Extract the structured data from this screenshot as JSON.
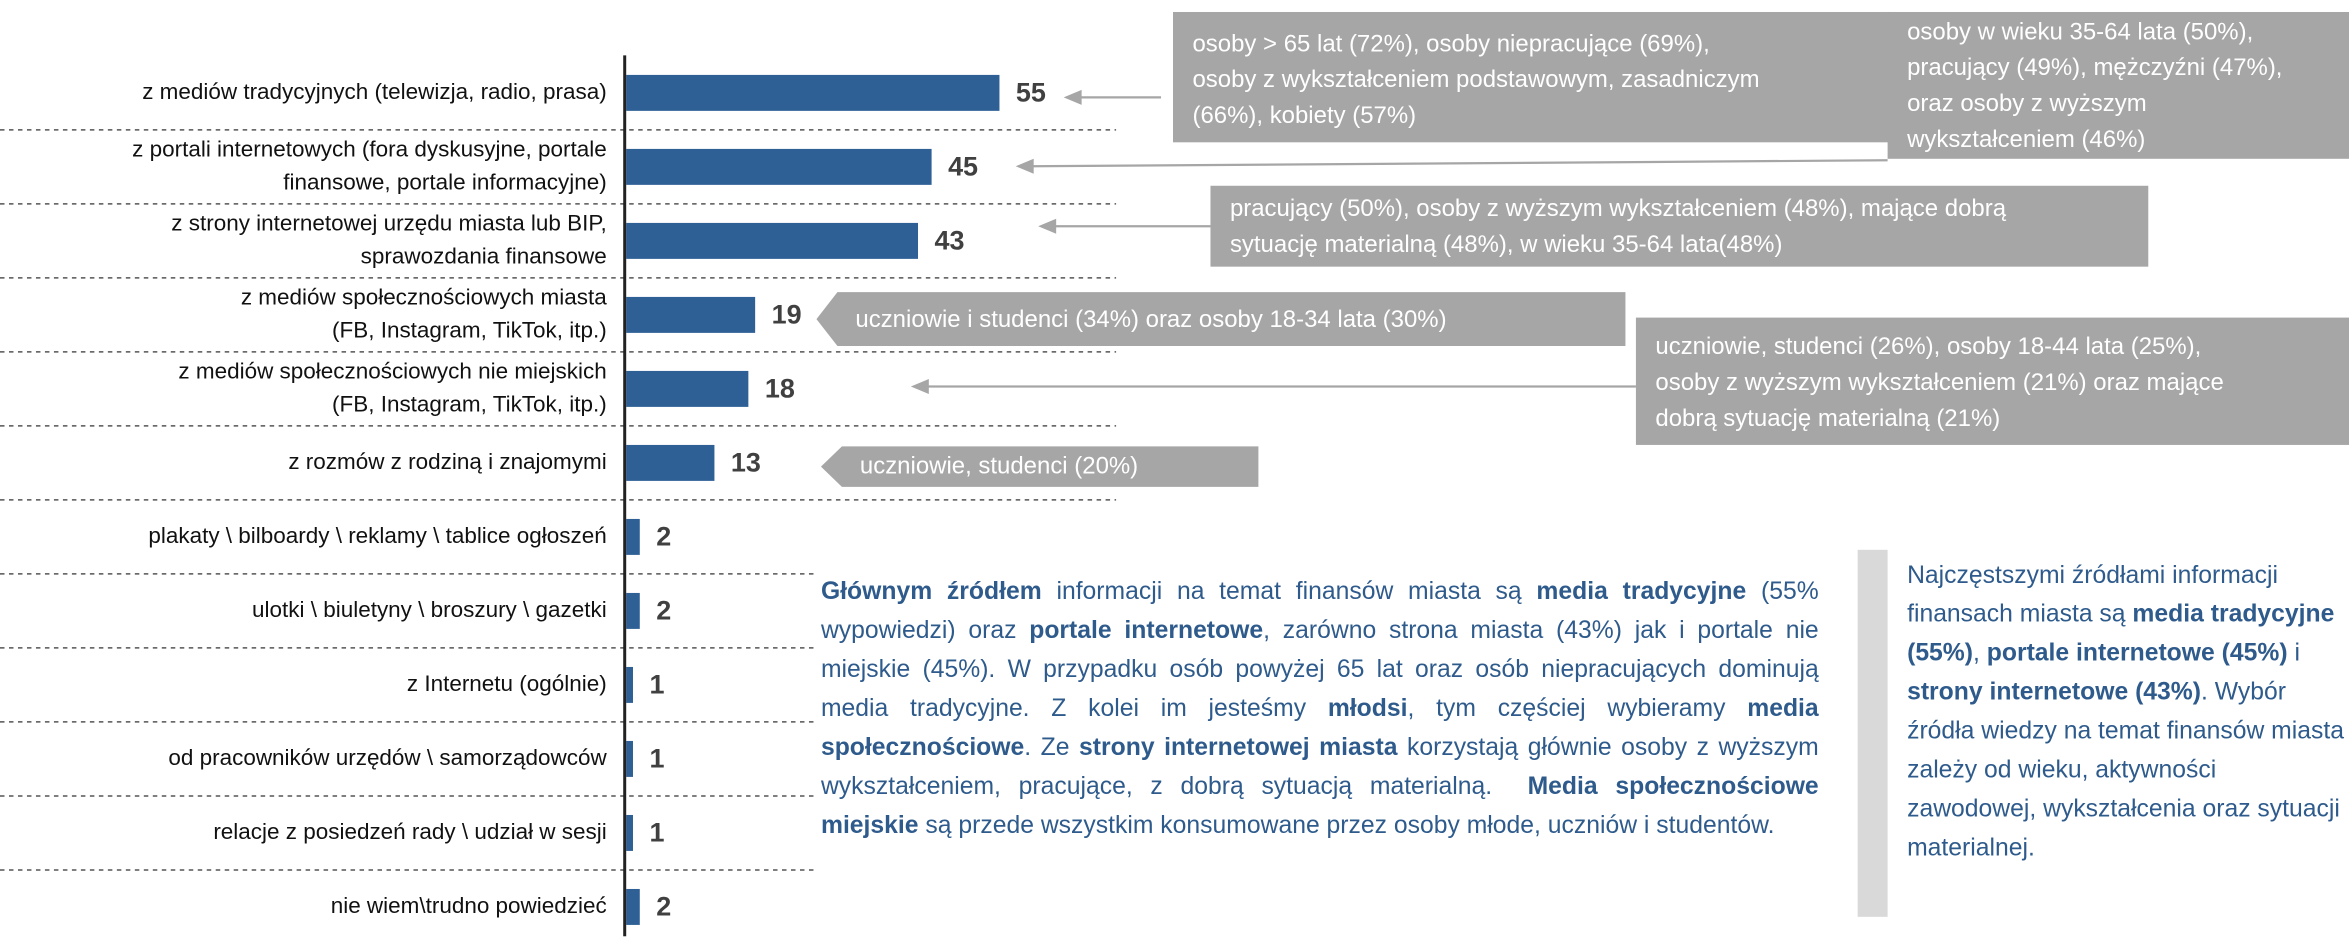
{
  "chart_data": {
    "type": "bar",
    "orientation": "horizontal",
    "color": "#2e6096",
    "categories": [
      "z mediów tradycyjnych (telewizja, radio, prasa)",
      "z portali internetowych (fora dyskusyjne, portale\nfinansowe, portale informacyjne)",
      "z strony internetowej urzędu miasta lub BIP,\nsprawozdania finansowe",
      "z mediów społecznościowych miasta\n(FB, Instagram, TikTok, itp.)",
      "z mediów społecznościowych nie miejskich\n(FB, Instagram, TikTok, itp.)",
      "z rozmów z rodziną i znajomymi",
      "plakaty \\ bilboardy \\ reklamy \\ tablice ogłoszeń",
      "ulotki \\ biuletyny \\ broszury \\ gazetki",
      "z Internetu (ogólnie)",
      "od pracowników urzędów \\ samorządowców",
      "relacje z posiedzeń rady \\ udział w sesji",
      "nie wiem\\trudno powiedzieć"
    ],
    "values": [
      55,
      45,
      43,
      19,
      18,
      13,
      2,
      2,
      1,
      1,
      1,
      2
    ],
    "annotations": [
      {
        "lines": [
          "osoby > 65 lat (72%), osoby niepracujące (69%),",
          "osoby z wykształceniem podstawowym, zasadniczym",
          "(66%), kobiety (57%)"
        ]
      },
      {
        "lines": [
          "osoby w wieku 35-64 lata (50%),",
          "pracujący (49%), mężczyźni (47%),",
          "oraz osoby z wyższym",
          "wykształceniem (46%)"
        ]
      },
      {
        "lines": [
          "pracujący (50%), osoby z wyższym wykształceniem (48%), mające dobrą",
          "sytuację materialną (48%), w wieku 35-64 lata(48%)"
        ]
      },
      {
        "lines": [
          "uczniowie i studenci (34%) oraz osoby 18-34 lata (30%)"
        ]
      },
      {
        "lines": [
          "uczniowie, studenci (26%), osoby 18-44 lata (25%),",
          "osoby z wyższym wykształceniem (21%) oraz mające",
          "dobrą sytuację materialną (21%)"
        ]
      },
      {
        "lines": [
          "uczniowie, studenci (20%)"
        ]
      }
    ]
  },
  "summary": {
    "runs": [
      {
        "text": "Głównym źródłem",
        "bold": true
      },
      {
        "text": " informacji na temat finansów miasta są ",
        "bold": false
      },
      {
        "text": "media tradycyjne",
        "bold": true
      },
      {
        "text": " (55% wypowiedzi) oraz ",
        "bold": false
      },
      {
        "text": "portale internetowe",
        "bold": true
      },
      {
        "text": ", zarówno strona miasta (43%) jak i portale nie miejskie (45%). W przypadku osób powyżej 65 lat oraz osób niepracujących dominują media tradycyjne. Z kolei im jesteśmy ",
        "bold": false
      },
      {
        "text": "młodsi",
        "bold": true
      },
      {
        "text": ", tym częściej wybieramy ",
        "bold": false
      },
      {
        "text": "media społecznościowe",
        "bold": true
      },
      {
        "text": ". Ze ",
        "bold": false
      },
      {
        "text": "strony internetowej miasta",
        "bold": true
      },
      {
        "text": " korzystają głównie osoby z wyższym wykształceniem, pracujące, z dobrą sytuacją materialną.  ",
        "bold": false
      },
      {
        "text": "Media społecznościowe miejskie",
        "bold": true
      },
      {
        "text": " są przede wszystkim konsumowane przez osoby młode, uczniów i studentów.",
        "bold": false
      }
    ]
  },
  "conclusion": {
    "runs": [
      {
        "text": "Najczęstszymi źródłami informacji finansach miasta są ",
        "bold": false
      },
      {
        "text": "media tradycyjne (55%)",
        "bold": true
      },
      {
        "text": ", ",
        "bold": false
      },
      {
        "text": "portale internetowe (45%)",
        "bold": true
      },
      {
        "text": " i ",
        "bold": false
      },
      {
        "text": "strony internetowe (43%)",
        "bold": true
      },
      {
        "text": ". Wybór źródła wiedzy na temat finansów miasta zależy od wieku, aktywności zawodowej, wykształcenia oraz sytuacji materialnej.",
        "bold": false
      }
    ]
  }
}
